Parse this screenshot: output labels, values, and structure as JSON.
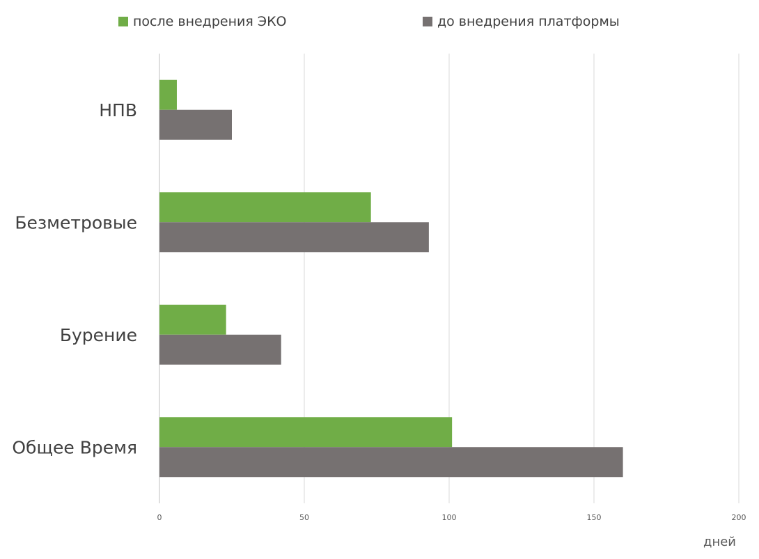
{
  "chart_data": {
    "type": "bar",
    "orientation": "horizontal",
    "title": "",
    "xlabel": "дней",
    "ylabel": "",
    "categories": [
      "НПВ",
      "Безметровые",
      "Бурение",
      "Общее Время"
    ],
    "series": [
      {
        "name": "после внедрения ЭКО",
        "color": "#70AD47",
        "values": [
          6,
          73,
          23,
          101
        ]
      },
      {
        "name": "до внедрения платформы",
        "color": "#767171",
        "values": [
          25,
          93,
          42,
          160
        ]
      }
    ],
    "xlim": [
      0,
      200
    ],
    "xticks": [
      0,
      50,
      100,
      150,
      200
    ],
    "grid": true,
    "legend": "top"
  }
}
